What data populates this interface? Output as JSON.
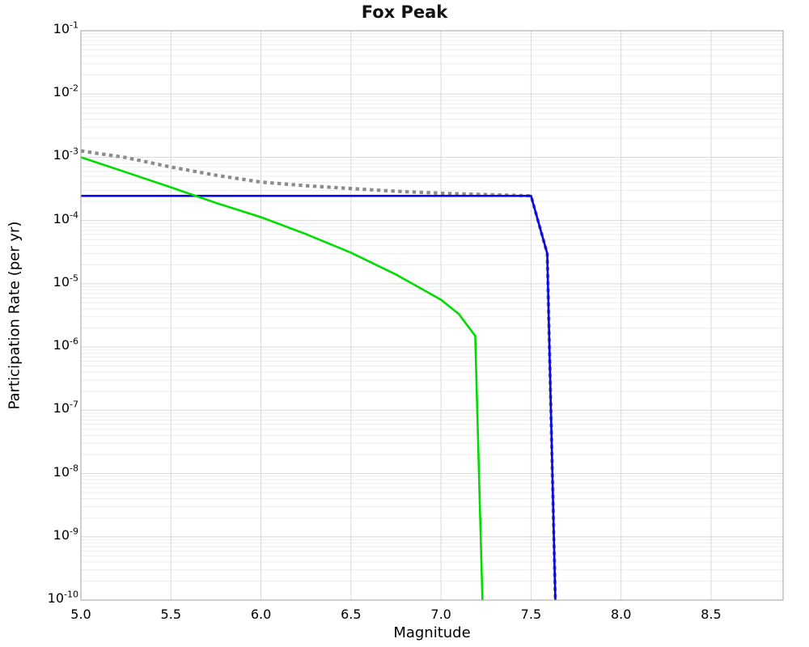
{
  "chart_data": {
    "type": "line",
    "title": "Fox Peak",
    "xlabel": "Magnitude",
    "ylabel": "Participation Rate (per yr)",
    "xlim": [
      5.0,
      8.9
    ],
    "ylim": [
      1e-10,
      0.1
    ],
    "x_ticks": [
      "5.0",
      "5.5",
      "6.0",
      "6.5",
      "7.0",
      "7.5",
      "8.0",
      "8.5"
    ],
    "x_tick_values": [
      5.0,
      5.5,
      6.0,
      6.5,
      7.0,
      7.5,
      8.0,
      8.5
    ],
    "y_tick_exponents": [
      -1,
      -2,
      -3,
      -4,
      -5,
      -6,
      -7,
      -8,
      -9,
      -10
    ],
    "grid": true,
    "legend": "none",
    "colors": {
      "major_grid": "#d8d8d8",
      "minor_grid": "#ededed",
      "frame": "#a0a0a0",
      "background": "#ffffff"
    },
    "series": [
      {
        "name": "gray-dotted",
        "color": "#8c8c8c",
        "style": "dotted",
        "width": 4.2,
        "points": [
          [
            5.0,
            0.00126
          ],
          [
            5.25,
            0.00099
          ],
          [
            5.5,
            0.0007
          ],
          [
            5.75,
            0.00052
          ],
          [
            6.0,
            0.000405
          ],
          [
            6.25,
            0.000355
          ],
          [
            6.5,
            0.00032
          ],
          [
            6.75,
            0.00029
          ],
          [
            7.0,
            0.00027
          ],
          [
            7.25,
            0.000257
          ],
          [
            7.5,
            0.000246
          ],
          [
            7.59,
            3e-05
          ],
          [
            7.635,
            1e-10
          ]
        ]
      },
      {
        "name": "blue-solid",
        "color": "#0505e8",
        "style": "solid",
        "width": 2.6,
        "points": [
          [
            5.0,
            0.000245
          ],
          [
            7.5,
            0.000245
          ],
          [
            7.59,
            3e-05
          ],
          [
            7.635,
            1e-10
          ]
        ]
      },
      {
        "name": "green-solid",
        "color": "#00dd00",
        "style": "solid",
        "width": 2.6,
        "points": [
          [
            5.0,
            0.001
          ],
          [
            5.25,
            0.00058
          ],
          [
            5.5,
            0.000335
          ],
          [
            5.75,
            0.00019
          ],
          [
            6.0,
            0.000113
          ],
          [
            6.25,
            6.1e-05
          ],
          [
            6.5,
            3.1e-05
          ],
          [
            6.75,
            1.4e-05
          ],
          [
            7.0,
            5.6e-06
          ],
          [
            7.1,
            3.3e-06
          ],
          [
            7.19,
            1.5e-06
          ],
          [
            7.23,
            1e-10
          ]
        ]
      }
    ]
  }
}
